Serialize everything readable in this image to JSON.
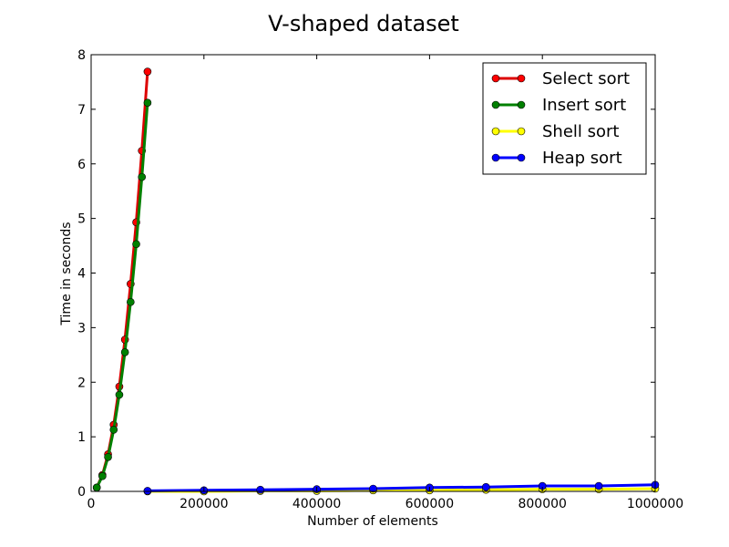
{
  "chart_data": {
    "type": "line",
    "title": "V-shaped dataset",
    "xlabel": "Number of elements",
    "ylabel": "Time in seconds",
    "xlim": [
      0,
      1000000
    ],
    "ylim": [
      0,
      8
    ],
    "grid": false,
    "legend_position": "top-right",
    "xticks": [
      0,
      200000,
      400000,
      600000,
      800000,
      1000000
    ],
    "xtick_labels": [
      "0",
      "200000",
      "400000",
      "600000",
      "800000",
      "1000000"
    ],
    "yticks": [
      0,
      1,
      2,
      3,
      4,
      5,
      6,
      7,
      8
    ],
    "ytick_labels": [
      "0",
      "1",
      "2",
      "3",
      "4",
      "5",
      "6",
      "7",
      "8"
    ],
    "series": [
      {
        "name": "Select sort",
        "color": "#ff0000",
        "line_color": "#dd0000",
        "x": [
          10000,
          20000,
          30000,
          40000,
          50000,
          60000,
          70000,
          80000,
          90000,
          100000
        ],
        "y": [
          0.07,
          0.3,
          0.68,
          1.22,
          1.92,
          2.78,
          3.8,
          4.93,
          6.24,
          7.69
        ]
      },
      {
        "name": "Insert sort",
        "color": "#008000",
        "line_color": "#008000",
        "x": [
          10000,
          20000,
          30000,
          40000,
          50000,
          60000,
          70000,
          80000,
          90000,
          100000
        ],
        "y": [
          0.07,
          0.28,
          0.63,
          1.13,
          1.77,
          2.55,
          3.47,
          4.53,
          5.76,
          7.12
        ]
      },
      {
        "name": "Shell sort",
        "color": "#ffff00",
        "line_color": "#ffff00",
        "x": [
          100000,
          200000,
          300000,
          400000,
          500000,
          600000,
          700000,
          800000,
          900000,
          1000000
        ],
        "y": [
          0.0,
          0.0,
          0.01,
          0.01,
          0.02,
          0.02,
          0.03,
          0.04,
          0.04,
          0.05
        ]
      },
      {
        "name": "Heap sort",
        "color": "#0000ff",
        "line_color": "#0000ff",
        "x": [
          100000,
          200000,
          300000,
          400000,
          500000,
          600000,
          700000,
          800000,
          900000,
          1000000
        ],
        "y": [
          0.01,
          0.02,
          0.03,
          0.04,
          0.05,
          0.07,
          0.08,
          0.1,
          0.1,
          0.12
        ]
      }
    ]
  }
}
